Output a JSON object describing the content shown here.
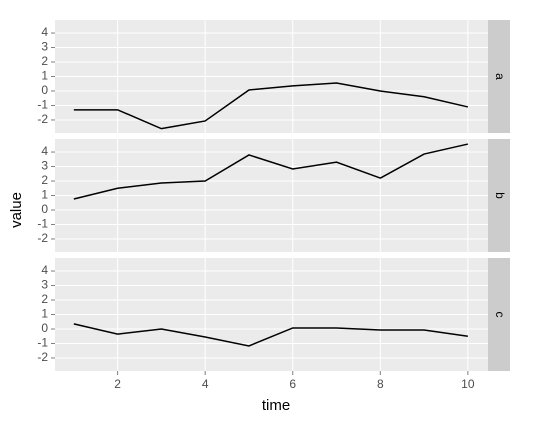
{
  "chart_data": {
    "type": "line",
    "x_label": "time",
    "y_label": "value",
    "x": [
      1,
      2,
      3,
      4,
      5,
      6,
      7,
      8,
      9,
      10
    ],
    "xlim": [
      0.57,
      10.46
    ],
    "xticks": [
      2,
      4,
      6,
      8,
      10
    ],
    "ylim": [
      -2.9,
      4.9
    ],
    "yticks": [
      -2,
      -1,
      0,
      1,
      2,
      3,
      4
    ],
    "grid": true,
    "series": [
      {
        "name": "a",
        "color": "#000000",
        "values": [
          -1.3,
          -1.3,
          -2.6,
          -2.07,
          0.07,
          0.35,
          0.55,
          0,
          -0.4,
          -1.1
        ]
      },
      {
        "name": "b",
        "color": "#000000",
        "values": [
          0.76,
          1.5,
          1.86,
          2.0,
          3.8,
          2.83,
          3.3,
          2.2,
          3.86,
          4.55
        ]
      },
      {
        "name": "c",
        "color": "#000000",
        "values": [
          0.35,
          -0.35,
          0,
          -0.55,
          -1.17,
          0.07,
          0.07,
          -0.07,
          -0.07,
          -0.5
        ]
      }
    ]
  }
}
